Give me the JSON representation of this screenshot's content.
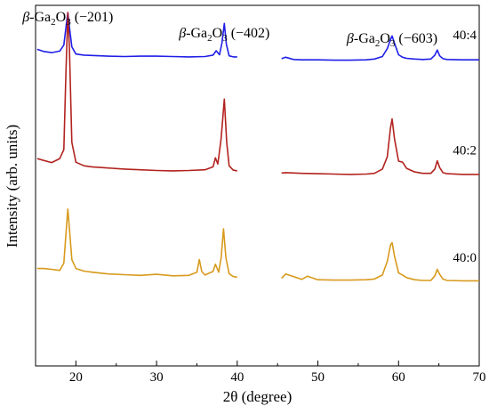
{
  "chart_data": {
    "type": "line",
    "title": "",
    "xlabel": "2θ (degree)",
    "ylabel": "Intensity (arb. units)",
    "xlim": [
      15,
      70
    ],
    "xticks": [
      20,
      30,
      40,
      50,
      60,
      70
    ],
    "ylim": [
      0,
      100
    ],
    "yticks_shown": false,
    "grid": false,
    "legend": "none",
    "peak_labels": [
      {
        "prefix": "β-Ga",
        "sub1": "2",
        "mid": "O",
        "sub2": "3",
        "miller": " (−201)",
        "x": 19
      },
      {
        "prefix": "β-Ga",
        "sub1": "2",
        "mid": "O",
        "sub2": "3",
        "miller": " (−402)",
        "x": 38.4
      },
      {
        "prefix": "β-Ga",
        "sub1": "2",
        "mid": "O",
        "sub2": "3",
        "miller": " (−603)",
        "x": 59.2
      }
    ],
    "gap": [
      40,
      45.5
    ],
    "series": [
      {
        "name": "40:4",
        "color": "#1f1fe8",
        "baseline": 85.2,
        "x": [
          15.2,
          16,
          17,
          18,
          18.5,
          18.75,
          19,
          19.2,
          19.5,
          20,
          21,
          22,
          24,
          26,
          28,
          30,
          32,
          34,
          36,
          37,
          37.4,
          37.8,
          38.1,
          38.4,
          38.65,
          39,
          39.5,
          40,
          45.5,
          46,
          47,
          48,
          50,
          52,
          54,
          56,
          57,
          58,
          58.6,
          59,
          59.2,
          59.5,
          60,
          60.5,
          61,
          62,
          63,
          64,
          64.5,
          64.8,
          65.1,
          65.5,
          66,
          68,
          70
        ],
        "y": [
          87.8,
          87.2,
          86.9,
          87.3,
          89,
          93.5,
          98,
          94,
          88.5,
          86.5,
          86.2,
          86.1,
          85.9,
          85.8,
          85.9,
          85.9,
          85.8,
          85.7,
          85.8,
          86.2,
          87.4,
          86.3,
          89.5,
          95,
          89.2,
          86,
          85.7,
          85.7,
          85.2,
          85.6,
          85.0,
          84.9,
          84.9,
          84.8,
          84.8,
          84.9,
          85.1,
          85.8,
          88,
          90.5,
          91.5,
          89.5,
          86.3,
          85.6,
          85.3,
          85.1,
          85.0,
          85.1,
          86.2,
          87.6,
          86.0,
          85.2,
          85.0,
          84.9,
          84.9
        ]
      },
      {
        "name": "40:2",
        "color": "#b2231f",
        "baseline": 53.2,
        "x": [
          15.2,
          16,
          17,
          18,
          18.5,
          18.75,
          19,
          19.2,
          19.5,
          20,
          21,
          22,
          24,
          26,
          28,
          30,
          32,
          34,
          36,
          37,
          37.3,
          37.6,
          38,
          38.4,
          38.7,
          39,
          39.5,
          40,
          45.5,
          46,
          48,
          50,
          52,
          54,
          56,
          57,
          58,
          58.6,
          59,
          59.2,
          59.5,
          60,
          60.5,
          61,
          62,
          63,
          64,
          64.5,
          64.8,
          65.1,
          65.5,
          66,
          68,
          70
        ],
        "y": [
          57.5,
          57.0,
          56.4,
          57.5,
          60,
          80,
          98,
          88,
          62,
          56.5,
          55.5,
          55.2,
          54.9,
          54.6,
          54.4,
          54.2,
          54.1,
          54.2,
          54.4,
          55.2,
          57.7,
          56,
          63,
          74,
          62,
          55.5,
          54.3,
          54.1,
          53.5,
          53.6,
          53.4,
          53.3,
          53.2,
          53.1,
          53.2,
          53.4,
          54.6,
          58,
          66,
          68.5,
          63,
          56.8,
          56.5,
          54.8,
          53.8,
          53.4,
          53.4,
          54.6,
          56.9,
          55,
          53.6,
          53.3,
          53.1,
          53.1
        ]
      },
      {
        "name": "40:0",
        "color": "#d89a1d",
        "baseline": 23.5,
        "x": [
          15.2,
          16,
          17,
          18,
          18.5,
          18.75,
          19,
          19.2,
          19.5,
          20,
          21,
          22,
          24,
          26,
          28,
          30,
          32,
          34,
          35,
          35.3,
          35.6,
          36,
          37,
          37.3,
          37.7,
          38,
          38.3,
          38.6,
          39,
          39.5,
          40,
          45.5,
          46,
          48,
          48.7,
          50,
          52,
          54,
          56,
          57,
          58,
          58.6,
          59,
          59.2,
          59.5,
          60,
          60.5,
          61,
          62,
          63,
          64,
          64.5,
          64.8,
          65.1,
          65.5,
          66,
          68,
          70
        ],
        "y": [
          27.0,
          27.0,
          26.8,
          26.5,
          28.5,
          36,
          43.5,
          38,
          29.5,
          27,
          26.3,
          26,
          25.5,
          25.3,
          25.1,
          25.4,
          25.0,
          25.1,
          26,
          29.5,
          26.2,
          25.2,
          26.2,
          28.2,
          26,
          30,
          38,
          30,
          25.6,
          24.8,
          24.6,
          24.3,
          25.5,
          24.0,
          24.9,
          23.9,
          23.8,
          23.8,
          23.9,
          24.1,
          25.2,
          29,
          33.5,
          34.2,
          30.5,
          25.8,
          25.2,
          24.5,
          23.9,
          23.7,
          23.7,
          25.0,
          26.8,
          25.4,
          24.1,
          23.7,
          23.6,
          23.6
        ]
      }
    ]
  }
}
